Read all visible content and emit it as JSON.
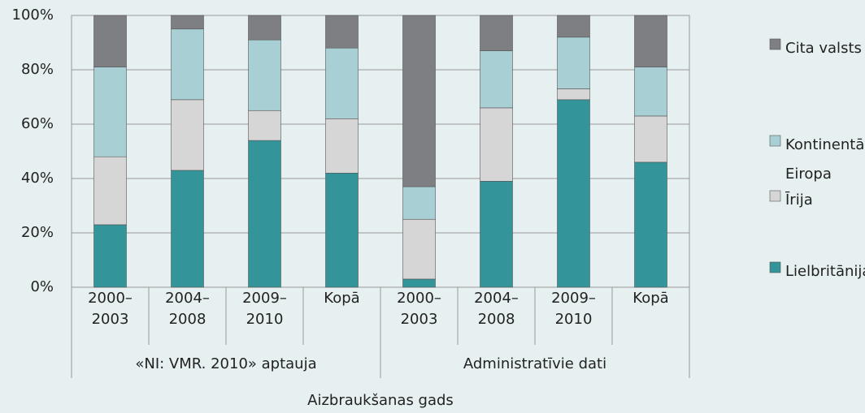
{
  "chart_data": {
    "type": "stacked_bar",
    "x_label": "Aizbraukšanas gads",
    "groups": [
      {
        "name": "«NI: VMR. 2010» aptauja",
        "size": 4
      },
      {
        "name": "Administratīvie dati",
        "size": 4
      }
    ],
    "categories": [
      "2000–2003",
      "2004–2008",
      "2009–2010",
      "Kopā",
      "2000–2003",
      "2004–2008",
      "2009–2010",
      "Kopā"
    ],
    "series": [
      {
        "name": "Lielbritānija",
        "color": "#33949a",
        "values": [
          23,
          43,
          54,
          42,
          3,
          39,
          69,
          46
        ]
      },
      {
        "name": "Īrija",
        "color": "#d6d6d6",
        "values": [
          25,
          26,
          11,
          20,
          22,
          27,
          4,
          17
        ]
      },
      {
        "name": "Kontinentālā Eiropa",
        "color": "#a8d0d4",
        "values": [
          33,
          26,
          26,
          26,
          12,
          21,
          19,
          18
        ]
      },
      {
        "name": "Cita valsts",
        "color": "#7d7f83",
        "values": [
          19,
          5,
          9,
          12,
          63,
          13,
          8,
          19
        ]
      }
    ],
    "ylim": [
      0,
      100
    ],
    "yticks": [
      {
        "value": 0,
        "label": "0%"
      },
      {
        "value": 20,
        "label": "20%"
      },
      {
        "value": 40,
        "label": "40%"
      },
      {
        "value": 60,
        "label": "60%"
      },
      {
        "value": 80,
        "label": "80%"
      },
      {
        "value": 100,
        "label": "100%"
      }
    ],
    "grid": true
  }
}
